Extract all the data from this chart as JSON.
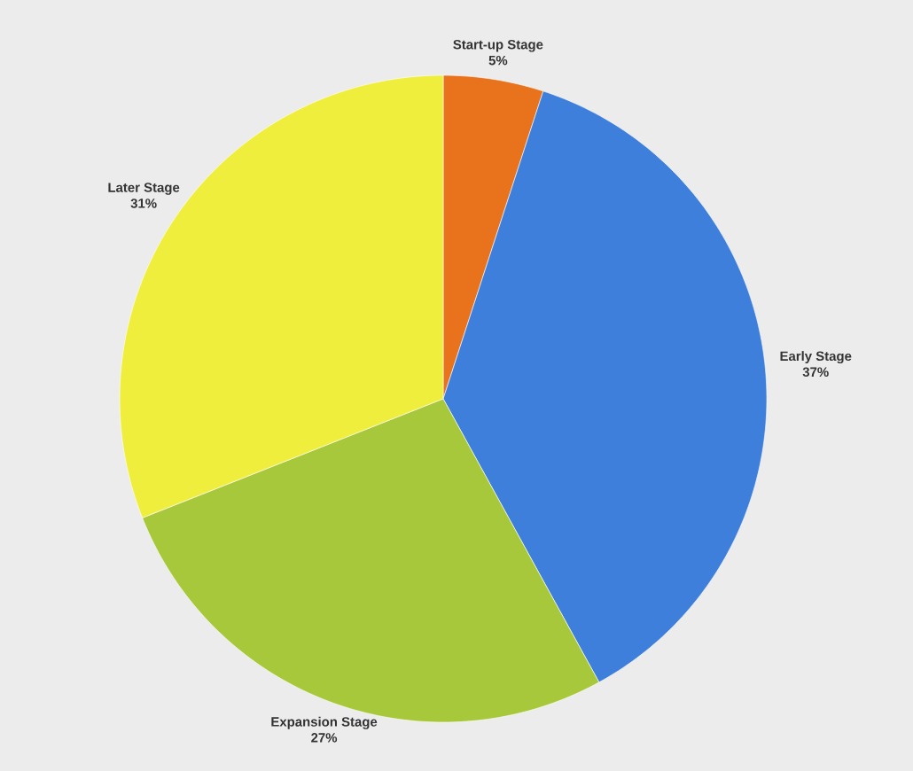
{
  "chart_data": {
    "type": "pie",
    "categories": [
      "Start-up Stage",
      "Early Stage",
      "Expansion Stage",
      "Later Stage"
    ],
    "values": [
      5,
      37,
      27,
      31
    ],
    "colors": [
      "#e8731c",
      "#3f7fdc",
      "#a8c83c",
      "#f0ee3c"
    ],
    "value_labels": [
      "5%",
      "37%",
      "27%",
      "31%"
    ]
  }
}
